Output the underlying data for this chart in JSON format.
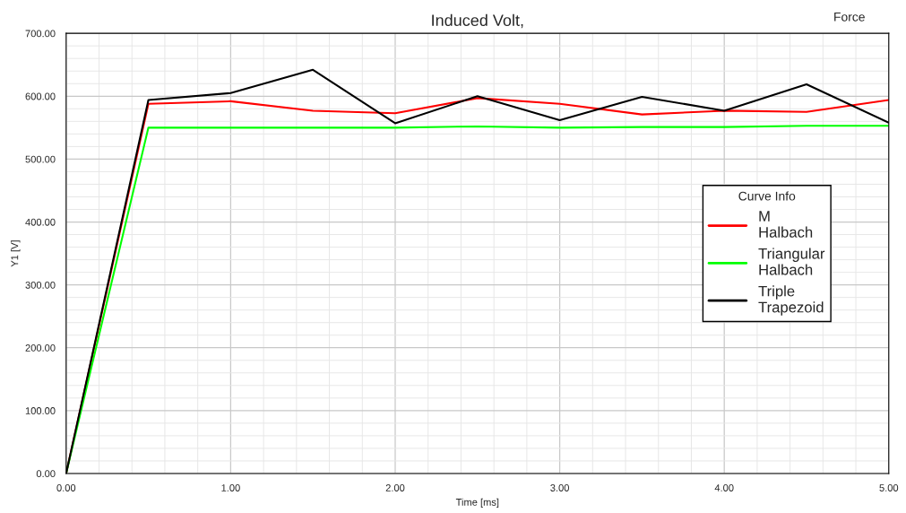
{
  "chart_data": {
    "type": "line",
    "title": "Induced Volt,",
    "xlabel": "Time [ms]",
    "ylabel": "Y1 [V]",
    "legend_title": "Curve Info",
    "annotations": [
      "Force"
    ],
    "x": [
      0,
      0.5,
      1,
      1.5,
      2,
      2.5,
      3,
      3.5,
      4,
      4.5,
      5
    ],
    "series": [
      {
        "name": "M\nHalbach",
        "color": "#ff0000",
        "values": [
          0,
          588,
          592,
          577,
          573,
          597,
          588,
          571,
          577,
          575,
          594
        ]
      },
      {
        "name": "Triangular\nHalbach",
        "color": "#00ff00",
        "values": [
          0,
          550,
          550,
          550,
          550,
          552,
          550,
          551,
          551,
          553,
          553
        ]
      },
      {
        "name": "Triple\nTrapezoid",
        "color": "#000000",
        "values": [
          0,
          594,
          605,
          642,
          557,
          600,
          562,
          599,
          577,
          619,
          558
        ]
      }
    ],
    "xlim": [
      0,
      5
    ],
    "ylim": [
      0,
      700
    ],
    "xticks": [
      {
        "value": 0,
        "label": "0.00"
      },
      {
        "value": 1,
        "label": "1.00"
      },
      {
        "value": 2,
        "label": "2.00"
      },
      {
        "value": 3,
        "label": "3.00"
      },
      {
        "value": 4,
        "label": "4.00"
      },
      {
        "value": 5,
        "label": "5.00"
      }
    ],
    "yticks": [
      {
        "value": 0,
        "label": "0.00"
      },
      {
        "value": 100,
        "label": "100.00"
      },
      {
        "value": 200,
        "label": "200.00"
      },
      {
        "value": 300,
        "label": "300.00"
      },
      {
        "value": 400,
        "label": "400.00"
      },
      {
        "value": 500,
        "label": "500.00"
      },
      {
        "value": 600,
        "label": "600.00"
      },
      {
        "value": 700,
        "label": "700.00"
      }
    ],
    "grid": true,
    "legend": "right",
    "marker": "none",
    "line_style": "solid"
  }
}
